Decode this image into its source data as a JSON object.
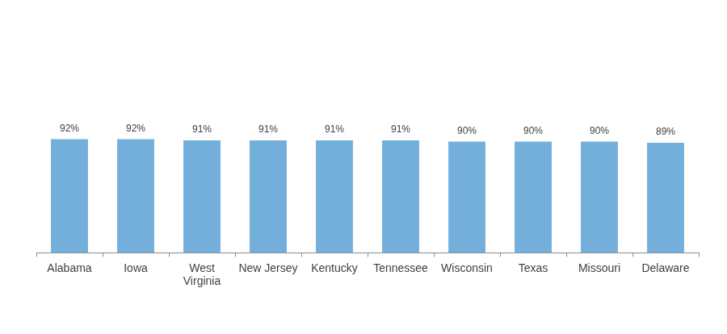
{
  "chart_data": {
    "type": "bar",
    "categories": [
      "Alabama",
      "Iowa",
      "West Virginia",
      "New Jersey",
      "Kentucky",
      "Tennessee",
      "Wisconsin",
      "Texas",
      "Missouri",
      "Delaware"
    ],
    "values": [
      92,
      92,
      91,
      91,
      91,
      91,
      90,
      90,
      90,
      89
    ],
    "value_labels": [
      "92%",
      "92%",
      "91%",
      "91%",
      "91%",
      "91%",
      "90%",
      "90%",
      "90%",
      "89%"
    ],
    "color": "#74afdb",
    "ylim": [
      0,
      200
    ],
    "yticks": [
      0,
      50,
      100,
      150,
      200
    ],
    "grid": false,
    "data_labels": true,
    "tick_labels": "x"
  }
}
